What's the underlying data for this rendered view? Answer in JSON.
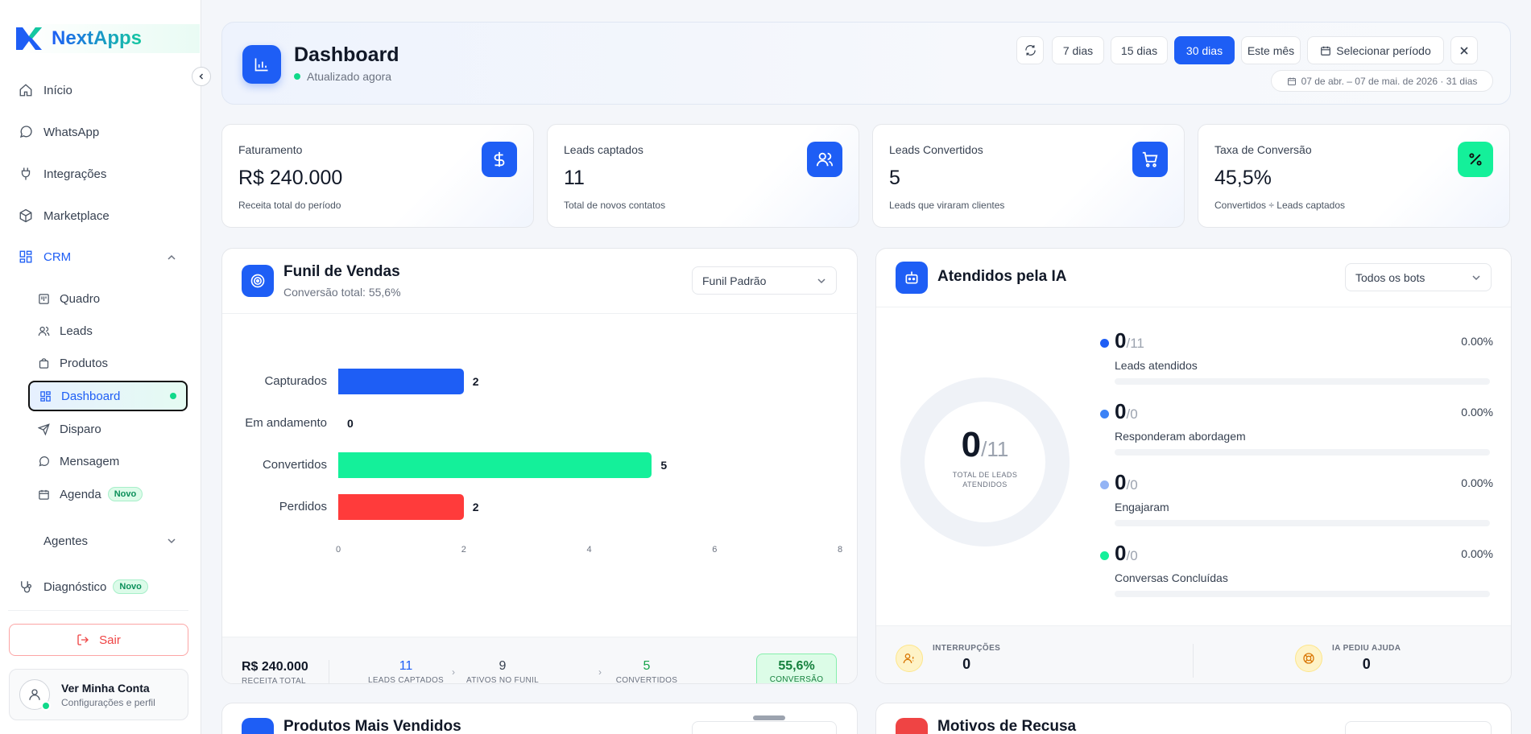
{
  "app": {
    "name": "NextApps",
    "accent": "#1e5ef5",
    "success": "#14f09a",
    "danger": "#ff3b3b"
  },
  "sidebar": {
    "items": [
      {
        "label": "Início",
        "icon": "home-icon"
      },
      {
        "label": "WhatsApp",
        "icon": "whatsapp-icon"
      },
      {
        "label": "Integrações",
        "icon": "plug-icon"
      },
      {
        "label": "Marketplace",
        "icon": "box-icon"
      },
      {
        "label": "CRM",
        "icon": "grid-icon",
        "expanded": true
      }
    ],
    "crm_items": [
      {
        "label": "Quadro",
        "icon": "kanban-icon"
      },
      {
        "label": "Leads",
        "icon": "users-icon"
      },
      {
        "label": "Produtos",
        "icon": "bag-icon"
      },
      {
        "label": "Dashboard",
        "icon": "grid-icon",
        "active": true
      },
      {
        "label": "Disparo",
        "icon": "send-icon"
      },
      {
        "label": "Mensagem",
        "icon": "chat-icon"
      },
      {
        "label": "Agenda",
        "icon": "calendar-icon",
        "badge": "Novo"
      }
    ],
    "agentes": {
      "label": "Agentes",
      "icon": "bot-icon"
    },
    "diagnostico": {
      "label": "Diagnóstico",
      "icon": "stethoscope-icon",
      "badge": "Novo"
    },
    "logout_label": "Sair",
    "account": {
      "title": "Ver Minha Conta",
      "subtitle": "Configurações e perfil"
    }
  },
  "header": {
    "title": "Dashboard",
    "status": "Atualizado agora",
    "ranges": [
      "7 dias",
      "15 dias",
      "30 dias",
      "Este mês"
    ],
    "active_range": "30 dias",
    "select_period": "Selecionar período",
    "date_range": "07 de abr. – 07 de mai. de 2026 · 31 dias"
  },
  "kpis": [
    {
      "label": "Faturamento",
      "value": "R$ 240.000",
      "sub": "Receita total do período",
      "icon": "dollar-icon"
    },
    {
      "label": "Leads captados",
      "value": "11",
      "sub": "Total de novos contatos",
      "icon": "users-icon"
    },
    {
      "label": "Leads Convertidos",
      "value": "5",
      "sub": "Leads que viraram clientes",
      "icon": "cart-icon"
    },
    {
      "label": "Taxa de Conversão",
      "value": "45,5%",
      "sub": "Convertidos ÷ Leads captados",
      "icon": "percent-icon"
    }
  ],
  "funnel": {
    "title": "Funil de Vendas",
    "subtitle": "Conversão total: 55,6%",
    "select": "Funil Padrão",
    "footer": {
      "revenue_value": "R$ 240.000",
      "revenue_label": "RECEITA TOTAL",
      "captured_value": "11",
      "captured_label": "LEADS CAPTADOS",
      "active_value": "9",
      "active_label": "ATIVOS NO FUNIL",
      "converted_value": "5",
      "converted_label": "CONVERTIDOS",
      "conversion_value": "55,6%",
      "conversion_label": "CONVERSÃO"
    }
  },
  "chart_data": {
    "type": "bar",
    "orientation": "horizontal",
    "categories": [
      "Capturados",
      "Em andamento",
      "Convertidos",
      "Perdidos"
    ],
    "values": [
      2,
      0,
      5,
      2
    ],
    "colors": [
      "#1e5ef5",
      "#1e5ef5",
      "#14f09a",
      "#ff3b3b"
    ],
    "xlim": [
      0,
      8
    ],
    "xticks": [
      "0",
      "2",
      "4",
      "6",
      "8"
    ],
    "grid": false
  },
  "ia": {
    "title": "Atendidos pela IA",
    "select": "Todos os bots",
    "donut": {
      "value": "0",
      "total": "/11",
      "caption1": "TOTAL DE LEADS",
      "caption2": "ATENDIDOS",
      "fraction": 0
    },
    "stats": [
      {
        "value": "0",
        "total": "/11",
        "pct": "0.00%",
        "name": "Leads atendidos",
        "color": "#1e5ef5"
      },
      {
        "value": "0",
        "total": "/0",
        "pct": "0.00%",
        "name": "Responderam abordagem",
        "color": "#3b82f6"
      },
      {
        "value": "0",
        "total": "/0",
        "pct": "0.00%",
        "name": "Engajaram",
        "color": "#93b4f5"
      },
      {
        "value": "0",
        "total": "/0",
        "pct": "0.00%",
        "name": "Conversas Concluídas",
        "color": "#14f09a"
      }
    ],
    "footer": {
      "interruptions_label": "INTERRUPÇÕES",
      "interruptions_value": "0",
      "help_label": "IA PEDIU AJUDA",
      "help_value": "0"
    }
  },
  "bottom": {
    "left_title": "Produtos Mais Vendidos",
    "right_title": "Motivos de Recusa"
  }
}
